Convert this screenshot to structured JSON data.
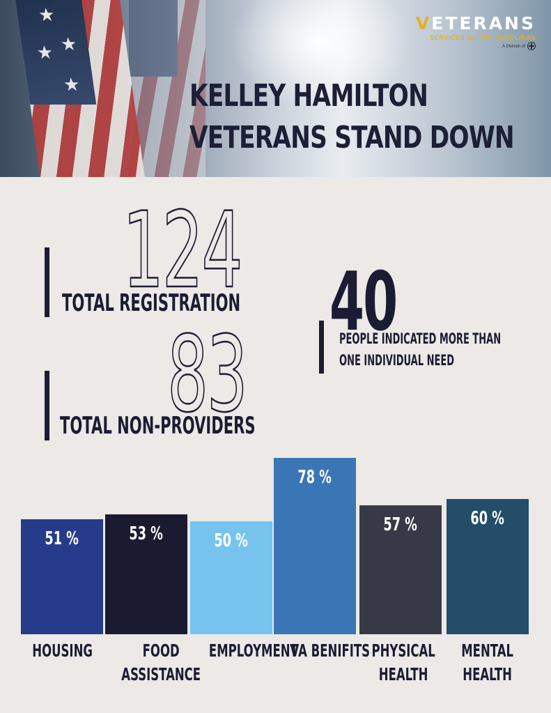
{
  "header": {
    "title_line1": "KELLEY HAMILTON",
    "title_line2": "VETERANS STAND DOWN",
    "logo": {
      "wordmark_first": "V",
      "wordmark_rest": "ETERANS",
      "subtitle": "SERVICES OF THE CAROLINAS",
      "division": "A Division of"
    }
  },
  "stats": {
    "registration": {
      "value": "124",
      "label": "TOTAL REGISTRATION"
    },
    "non_providers": {
      "value": "83",
      "label": "TOTAL NON-PROVIDERS"
    },
    "multi_need": {
      "value": "40",
      "label_line1": "PEOPLE INDICATED MORE THAN",
      "label_line2": "ONE INDIVIDUAL NEED"
    }
  },
  "colors": {
    "navy": "#1b1c34",
    "background": "#ece9e6",
    "gold": "#e3b125"
  },
  "chart_data": {
    "type": "bar",
    "categories": [
      "HOUSING",
      "FOOD\nASSISTANCE",
      "EMPLOYMENT",
      "VA BENIFITS",
      "PHYSICAL\nHEALTH",
      "MENTAL\nHEALTH"
    ],
    "values": [
      51,
      53,
      50,
      78,
      57,
      60
    ],
    "value_labels": [
      "51 %",
      "53 %",
      "50 %",
      "78 %",
      "57 %",
      "60 %"
    ],
    "colors": [
      "#273b8b",
      "#1a1a30",
      "#76c4ee",
      "#3a75b5",
      "#373a46",
      "#234d69"
    ],
    "unit": "%",
    "title": "",
    "xlabel": "",
    "ylabel": ""
  }
}
